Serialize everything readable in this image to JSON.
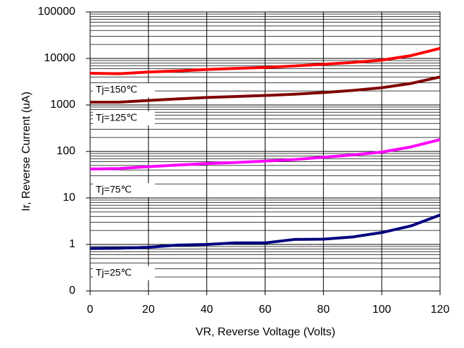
{
  "chart_data": {
    "type": "line",
    "xlabel": "VR, Reverse Voltage (Volts)",
    "ylabel": "Ir, Reverse Current (uA)",
    "x": [
      0,
      10,
      20,
      30,
      40,
      50,
      60,
      70,
      80,
      90,
      100,
      110,
      120
    ],
    "series": [
      {
        "name": "Tj=25℃",
        "color": "#000080",
        "values": [
          0.82,
          0.83,
          0.87,
          0.97,
          1.0,
          1.08,
          1.08,
          1.28,
          1.3,
          1.45,
          1.8,
          2.5,
          4.3
        ]
      },
      {
        "name": "Tj=75℃",
        "color": "#ff00ff",
        "values": [
          42,
          43,
          47,
          51,
          55,
          58,
          62,
          67,
          75,
          84,
          97,
          125,
          180
        ]
      },
      {
        "name": "Tj=125℃",
        "color": "#800000",
        "values": [
          1150,
          1150,
          1250,
          1350,
          1450,
          1520,
          1600,
          1700,
          1850,
          2050,
          2350,
          2900,
          4000
        ]
      },
      {
        "name": "Tj=150℃",
        "color": "#ff0000",
        "values": [
          4800,
          4700,
          5100,
          5400,
          5800,
          6100,
          6400,
          6900,
          7500,
          8200,
          9200,
          11500,
          16500
        ]
      }
    ],
    "xlim": [
      0,
      120
    ],
    "xticks": [
      0,
      20,
      40,
      60,
      80,
      100,
      120
    ],
    "ylim": [
      0.1,
      100000
    ],
    "log_y": true,
    "yticks": [
      {
        "value": 0.1,
        "label": "0"
      },
      1,
      10,
      100,
      1000,
      10000,
      100000
    ],
    "grid": true,
    "minor_grid": true
  }
}
